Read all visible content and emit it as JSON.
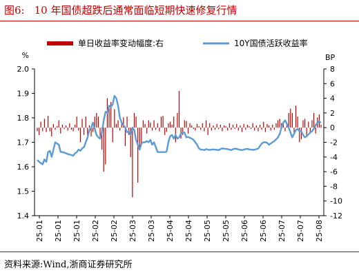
{
  "header": {
    "figure_label": "图6:",
    "title": "10 年国债超跌后通常面临短期快速修复行情"
  },
  "footer": {
    "source": "资料来源:Wind,浙商证券研究所"
  },
  "colors": {
    "bar": "#c00000",
    "line": "#5b9bd5",
    "axis": "#000000",
    "rule": "#c00000"
  },
  "chart_data": {
    "type": "bar+line",
    "title": "",
    "legend_position": "top",
    "left_unit": "%",
    "right_unit": "BP",
    "ylim_left": [
      1.4,
      2.0
    ],
    "ylim_right": [
      -12,
      8
    ],
    "yticks_left": [
      "1.4",
      "1.5",
      "1.6",
      "1.7",
      "1.8",
      "1.9",
      "2.0"
    ],
    "yticks_right": [
      "-12",
      "-10",
      "-8",
      "-6",
      "-4",
      "-2",
      "0",
      "2",
      "4",
      "6",
      "8"
    ],
    "xticks": [
      "25-01",
      "25-01",
      "25-01",
      "25-02",
      "25-02",
      "25-03",
      "25-03",
      "25-04",
      "25-04",
      "25-05",
      "25-05",
      "25-06",
      "25-06",
      "25-07",
      "25-07",
      "25-08"
    ],
    "series": [
      {
        "name": "单日收益率变动幅度:右",
        "type": "bar",
        "axis": "right",
        "x": [
          0,
          1,
          2,
          3,
          4,
          5,
          6,
          7,
          8,
          9,
          10,
          11,
          12,
          13,
          14,
          15,
          16,
          17,
          18,
          19,
          20,
          21,
          22,
          23,
          24,
          25,
          26,
          27,
          28,
          29,
          30,
          31,
          32,
          33,
          34,
          35,
          36,
          37,
          38,
          39,
          40,
          41,
          42,
          43,
          44,
          45,
          46,
          47,
          48,
          49,
          50,
          51,
          52,
          53,
          54,
          55,
          56,
          57,
          58,
          59,
          60,
          61,
          62,
          63,
          64,
          65,
          66,
          67,
          68,
          69,
          70,
          71,
          72,
          73,
          74,
          75,
          76,
          77,
          78,
          79,
          80,
          81,
          82,
          83,
          84,
          85,
          86,
          87,
          88,
          89,
          90,
          91,
          92,
          93,
          94,
          95,
          96,
          97,
          98,
          99,
          100,
          101,
          102,
          103,
          104,
          105,
          106,
          107,
          108,
          109,
          110,
          111,
          112,
          113,
          114,
          115,
          116,
          117,
          118,
          119,
          120,
          121,
          122,
          123,
          124,
          125,
          126,
          127,
          128,
          129,
          130,
          131,
          132,
          133,
          134,
          135,
          136,
          137,
          138,
          139,
          140,
          141,
          142,
          143,
          144,
          145,
          146,
          147,
          148,
          149,
          150,
          151,
          152,
          153,
          154,
          155,
          156,
          157,
          158
        ],
        "values": [
          -0.5,
          -1.0,
          0.8,
          -0.5,
          1.2,
          -0.6,
          1.6,
          -0.5,
          -1.2,
          0.5,
          -0.3,
          0.2,
          1.0,
          -0.8,
          0.4,
          -0.2,
          0.3,
          -0.4,
          0.6,
          -0.3,
          -0.5,
          0.4,
          1.5,
          -0.4,
          -2.0,
          1.2,
          -1.0,
          1.5,
          -1.6,
          0.3,
          -1.2,
          -0.6,
          1.5,
          2.0,
          1.5,
          -1.6,
          -3.0,
          -6.0,
          -5.0,
          4.0,
          3.0,
          3.5,
          -2.0,
          2.5,
          0.5,
          1.0,
          -0.4,
          0.8,
          1.4,
          -2.5,
          1.5,
          -1.0,
          -4.0,
          -9.5,
          2.0,
          1.5,
          -7.5,
          -3.0,
          -2.2,
          1.0,
          0.5,
          -0.8,
          1.0,
          0.7,
          -0.4,
          1.0,
          -0.3,
          0.6,
          -0.5,
          1.5,
          1.6,
          -1.0,
          -0.6,
          0.6,
          0.8,
          0.4,
          1.5,
          -2.0,
          2.0,
          5.0,
          -1.5,
          -1.0,
          1.0,
          0.9,
          -0.8,
          0.6,
          0.3,
          -0.2,
          -0.4,
          0.5,
          0.2,
          -0.3,
          0.6,
          -0.5,
          1.0,
          -1.0,
          0.6,
          -0.4,
          0.3,
          -0.3,
          0.5,
          -0.2,
          0.4,
          -0.5,
          0.3,
          0.2,
          -0.4,
          0.6,
          -0.3,
          0.4,
          -0.2,
          0.5,
          -0.4,
          0.3,
          -0.6,
          0.5,
          -0.3,
          0.4,
          0.2,
          -0.2,
          0.6,
          -0.4,
          0.3,
          -0.5,
          0.4,
          -0.3,
          0.8,
          -0.6,
          0.5,
          0.3,
          -0.4,
          0.4,
          -0.3,
          0.6,
          1.0,
          1.2,
          0.6,
          0.8,
          -0.5,
          0.4,
          2.0,
          2.6,
          2.0,
          -1.0,
          3.0,
          1.5,
          -2.0,
          -1.6,
          1.0,
          1.2,
          -1.2,
          0.8,
          -0.6,
          1.0,
          2.0,
          -0.8,
          1.4,
          1.8,
          0.4
        ]
      },
      {
        "name": "10Y国债活跃收益率",
        "type": "line",
        "axis": "left",
        "x": [
          0,
          1,
          2,
          3,
          4,
          5,
          6,
          7,
          8,
          9,
          10,
          11,
          12,
          13,
          14,
          15,
          16,
          17,
          18,
          19,
          20,
          21,
          22,
          23,
          24,
          25,
          26,
          27,
          28,
          29,
          30,
          31,
          32,
          33,
          34,
          35,
          36,
          37,
          38,
          39,
          40,
          41,
          42,
          43,
          44,
          45,
          46,
          47,
          48,
          49,
          50,
          51,
          52,
          53,
          54,
          55,
          56,
          57,
          58,
          59,
          60,
          61,
          62,
          63,
          64,
          65,
          66,
          67,
          68,
          69,
          70,
          71,
          72,
          73,
          74,
          75,
          76,
          77,
          78,
          79,
          80,
          81,
          82,
          83,
          84,
          85,
          86,
          87,
          88,
          89,
          90,
          91,
          92,
          93,
          94,
          95,
          96,
          97,
          98,
          99,
          100,
          101,
          102,
          103,
          104,
          105,
          106,
          107,
          108,
          109,
          110,
          111,
          112,
          113,
          114,
          115,
          116,
          117,
          118,
          119,
          120,
          121,
          122,
          123,
          124,
          125,
          126,
          127,
          128,
          129,
          130,
          131,
          132,
          133,
          134,
          135,
          136,
          137,
          138,
          139,
          140,
          141,
          142,
          143,
          144,
          145,
          146,
          147,
          148,
          149,
          150,
          151,
          152,
          153,
          154,
          155,
          156,
          157,
          158
        ],
        "values": [
          1.628,
          1.62,
          1.615,
          1.61,
          1.63,
          1.62,
          1.66,
          1.665,
          1.64,
          1.67,
          1.7,
          1.695,
          1.69,
          1.66,
          1.66,
          1.658,
          1.655,
          1.652,
          1.65,
          1.648,
          1.645,
          1.655,
          1.66,
          1.67,
          1.665,
          1.675,
          1.68,
          1.7,
          1.72,
          1.75,
          1.76,
          1.78,
          1.755,
          1.73,
          1.72,
          1.715,
          1.74,
          1.79,
          1.825,
          1.82,
          1.85,
          1.845,
          1.855,
          1.89,
          1.88,
          1.85,
          1.8,
          1.78,
          1.77,
          1.76,
          1.74,
          1.745,
          1.73,
          1.76,
          1.75,
          1.71,
          1.69,
          1.67,
          1.695,
          1.7,
          1.7,
          1.705,
          1.7,
          1.71,
          1.69,
          1.7,
          1.68,
          1.66,
          1.66,
          1.66,
          1.66,
          1.66,
          1.662,
          1.7,
          1.725,
          1.73,
          1.715,
          1.73,
          1.715,
          1.72,
          1.735,
          1.74,
          1.74,
          1.72,
          1.722,
          1.718,
          1.715,
          1.71,
          1.7,
          1.69,
          1.675,
          1.67,
          1.67,
          1.668,
          1.672,
          1.67,
          1.669,
          1.67,
          1.671,
          1.67,
          1.669,
          1.668,
          1.672,
          1.675,
          1.674,
          1.673,
          1.672,
          1.67,
          1.668,
          1.672,
          1.674,
          1.673,
          1.671,
          1.669,
          1.668,
          1.67,
          1.672,
          1.673,
          1.671,
          1.67,
          1.669,
          1.67,
          1.672,
          1.674,
          1.685,
          1.695,
          1.7,
          1.7,
          1.698,
          1.69,
          1.695,
          1.7,
          1.705,
          1.712,
          1.72,
          1.735,
          1.76,
          1.78,
          1.79,
          1.775,
          1.76,
          1.74,
          1.72,
          1.735,
          1.75,
          1.755,
          1.745,
          1.745,
          1.73,
          1.72,
          1.725,
          1.732,
          1.74,
          1.745,
          1.755,
          1.77,
          1.78,
          1.785,
          1.78
        ]
      }
    ]
  }
}
